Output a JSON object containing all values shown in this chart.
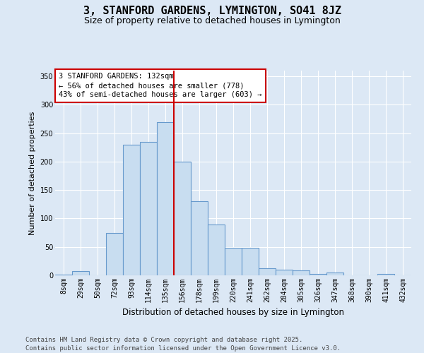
{
  "title": "3, STANFORD GARDENS, LYMINGTON, SO41 8JZ",
  "subtitle": "Size of property relative to detached houses in Lymington",
  "xlabel": "Distribution of detached houses by size in Lymington",
  "ylabel": "Number of detached properties",
  "categories": [
    "8sqm",
    "29sqm",
    "50sqm",
    "72sqm",
    "93sqm",
    "114sqm",
    "135sqm",
    "156sqm",
    "178sqm",
    "199sqm",
    "220sqm",
    "241sqm",
    "262sqm",
    "284sqm",
    "305sqm",
    "326sqm",
    "347sqm",
    "368sqm",
    "390sqm",
    "411sqm",
    "432sqm"
  ],
  "values": [
    1,
    8,
    0,
    75,
    230,
    235,
    270,
    200,
    130,
    90,
    48,
    48,
    13,
    10,
    9,
    3,
    5,
    0,
    0,
    3,
    0
  ],
  "bar_color": "#c8ddf0",
  "bar_edgecolor": "#6699cc",
  "vline_index": 6,
  "vline_color": "#cc0000",
  "annotation_line1": "3 STANFORD GARDENS: 132sqm",
  "annotation_line2": "← 56% of detached houses are smaller (778)",
  "annotation_line3": "43% of semi-detached houses are larger (603) →",
  "annotation_box_edgecolor": "#cc0000",
  "annotation_box_facecolor": "white",
  "ylim": [
    0,
    360
  ],
  "yticks": [
    0,
    50,
    100,
    150,
    200,
    250,
    300,
    350
  ],
  "footnote_line1": "Contains HM Land Registry data © Crown copyright and database right 2025.",
  "footnote_line2": "Contains public sector information licensed under the Open Government Licence v3.0.",
  "background_color": "#dce8f5",
  "plot_bg_color": "#dce8f5",
  "grid_color": "white",
  "title_fontsize": 11,
  "subtitle_fontsize": 9,
  "xlabel_fontsize": 8.5,
  "ylabel_fontsize": 8,
  "tick_fontsize": 7,
  "annotation_fontsize": 7.5,
  "footnote_fontsize": 6.5
}
